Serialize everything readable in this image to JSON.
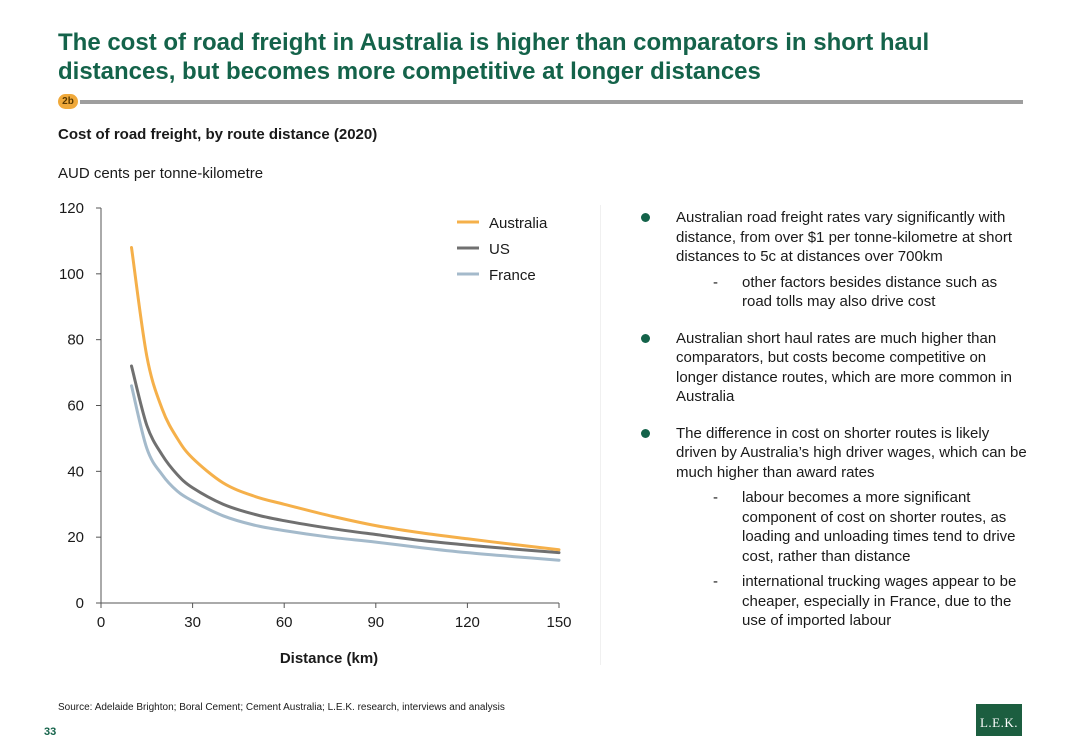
{
  "slide": {
    "title": "The cost of road freight in Australia is higher than comparators in short haul distances, but becomes more competitive at longer distances",
    "badge": "2b",
    "source": "Source:  Adelaide Brighton; Boral Cement; Cement Australia; L.E.K. research, interviews and analysis",
    "page_number": "33",
    "logo_text": "L.E.K."
  },
  "chart_header": {
    "title": "Cost of road freight, by route distance (2020)",
    "units": "AUD cents per tonne-kilometre"
  },
  "chart_data": {
    "type": "line",
    "title": "Cost of road freight, by route distance (2020)",
    "ylabel": "AUD cents per tonne-kilometre",
    "xlabel": "Distance (km)",
    "xlim": [
      0,
      150
    ],
    "ylim": [
      0,
      120
    ],
    "xticks": [
      0,
      30,
      60,
      90,
      120,
      150
    ],
    "yticks": [
      0,
      20,
      40,
      60,
      80,
      100,
      120
    ],
    "grid": false,
    "legend_position": "top-right",
    "x": [
      10,
      15,
      20,
      25,
      30,
      40,
      50,
      60,
      75,
      90,
      105,
      120,
      135,
      150
    ],
    "series": [
      {
        "name": "Australia",
        "color": "#f5b04a",
        "values": [
          108,
          75,
          59,
          50,
          44,
          36.5,
          32.5,
          30,
          26.5,
          23.5,
          21.3,
          19.5,
          17.8,
          16.2
        ]
      },
      {
        "name": "US",
        "color": "#707070",
        "values": [
          72,
          54,
          45,
          39,
          35,
          30,
          27,
          25,
          22.7,
          20.8,
          19,
          17.6,
          16.4,
          15.3
        ]
      },
      {
        "name": "France",
        "color": "#a4bacb",
        "values": [
          66,
          47,
          39,
          34,
          31,
          26.5,
          23.7,
          22,
          20,
          18.5,
          16.8,
          15.3,
          14.1,
          13
        ]
      }
    ]
  },
  "bullets": [
    {
      "text": "Australian road freight rates vary significantly with distance, from over $1 per tonne-kilometre at short distances to 5c at distances over 700km",
      "subs": [
        "other factors besides distance such as road tolls may also drive cost"
      ]
    },
    {
      "text": "Australian short haul rates are much higher than comparators, but costs become competitive on longer distance routes, which are more common in Australia",
      "subs": []
    },
    {
      "text": "The difference in cost on shorter routes is likely driven by Australia’s high driver wages, which can be much higher than award rates",
      "subs": [
        "labour becomes a more significant component of cost on shorter routes, as loading and unloading times tend to drive cost, rather than distance",
        "international trucking wages appear to be cheaper, especially in France, due to the use of imported labour"
      ]
    }
  ]
}
